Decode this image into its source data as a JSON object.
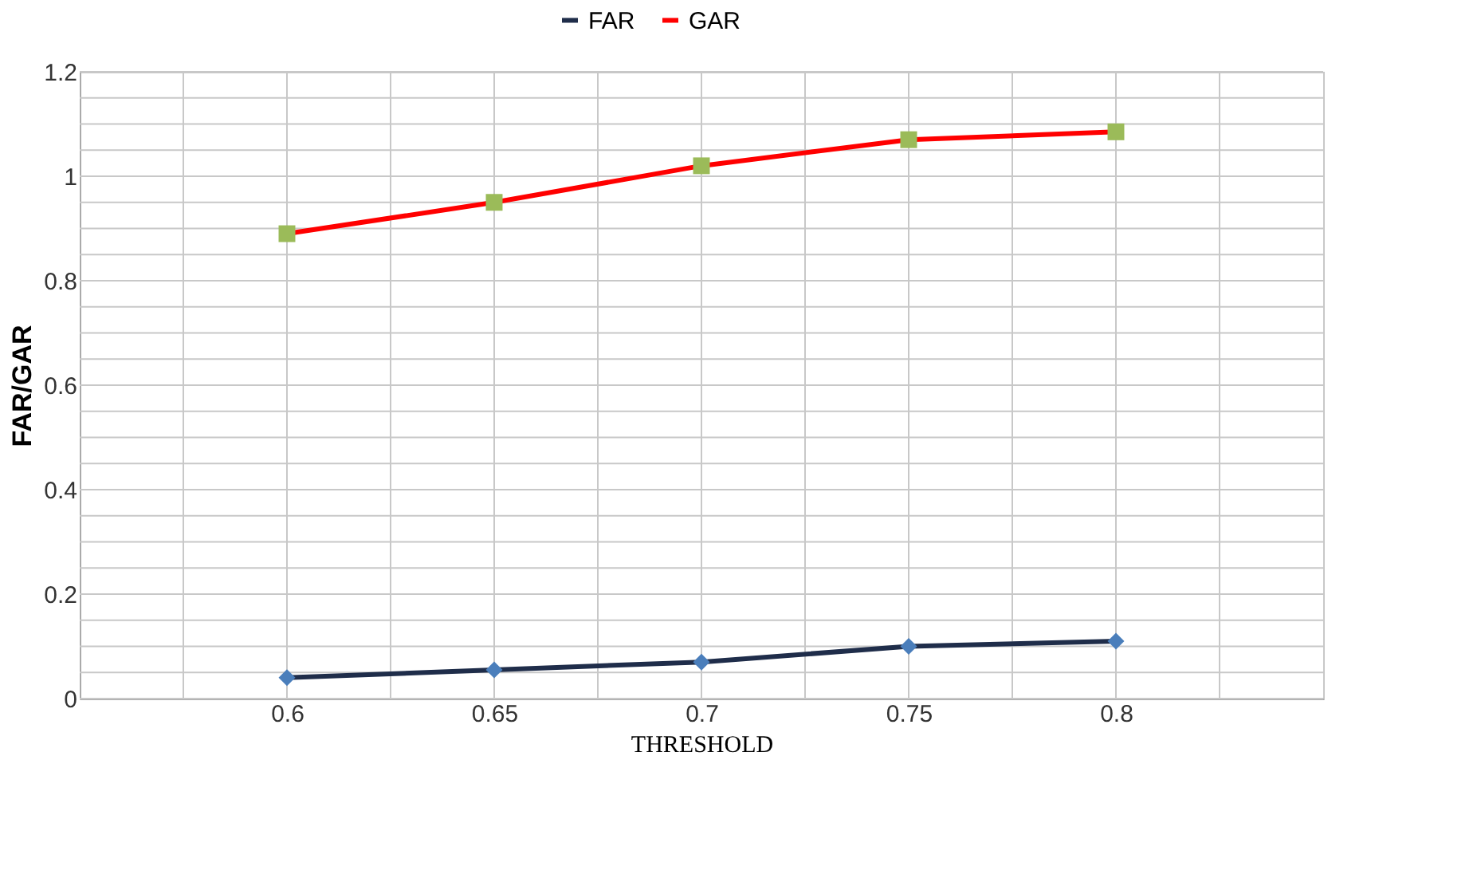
{
  "chart_data": {
    "type": "line",
    "xlabel": "THRESHOLD",
    "ylabel": "FAR/GAR",
    "x": [
      0.6,
      0.65,
      0.7,
      0.75,
      0.8
    ],
    "series": [
      {
        "name": "FAR",
        "color": "#1f2d4a",
        "colors": [
          "#4a7ebb",
          "#4a7ebb",
          "#4a7ebb",
          "#4a7ebb",
          "#4a7ebb"
        ],
        "marker": "diamond",
        "values": [
          0.04,
          0.055,
          0.07,
          0.1,
          0.11
        ]
      },
      {
        "name": "GAR",
        "color": "#ff0000",
        "colors": [
          "#9bbb59",
          "#9bbb59",
          "#9bbb59",
          "#9bbb59",
          "#9bbb59"
        ],
        "marker": "square",
        "values": [
          0.89,
          0.95,
          1.02,
          1.07,
          1.085
        ]
      }
    ],
    "xlim": [
      0.55,
      0.85
    ],
    "xticks": [
      {
        "value": 0.575,
        "label": null
      },
      0.6,
      {
        "value": 0.625,
        "label": null
      },
      0.65,
      {
        "value": 0.675,
        "label": null
      },
      0.7,
      {
        "value": 0.725,
        "label": null
      },
      0.75,
      {
        "value": 0.775,
        "label": null
      },
      0.8,
      {
        "value": 0.825,
        "label": null
      }
    ],
    "ylim": [
      0,
      1.2
    ],
    "yticks": [
      0,
      {
        "value": 0.05,
        "label": null
      },
      {
        "value": 0.1,
        "label": null
      },
      {
        "value": 0.15,
        "label": null
      },
      0.2,
      {
        "value": 0.25,
        "label": null
      },
      {
        "value": 0.3,
        "label": null
      },
      {
        "value": 0.35,
        "label": null
      },
      0.4,
      {
        "value": 0.45,
        "label": null
      },
      {
        "value": 0.5,
        "label": null
      },
      {
        "value": 0.55,
        "label": null
      },
      0.6,
      {
        "value": 0.65,
        "label": null
      },
      {
        "value": 0.7,
        "label": null
      },
      {
        "value": 0.75,
        "label": null
      },
      0.8,
      {
        "value": 0.85,
        "label": null
      },
      {
        "value": 0.9,
        "label": null
      },
      {
        "value": 0.95,
        "label": null
      },
      1,
      {
        "value": 1.05,
        "label": null
      },
      {
        "value": 1.1,
        "label": null
      },
      {
        "value": 1.15,
        "label": null
      },
      1.2
    ],
    "grid": true,
    "legend": "top",
    "line_style": "solid"
  }
}
